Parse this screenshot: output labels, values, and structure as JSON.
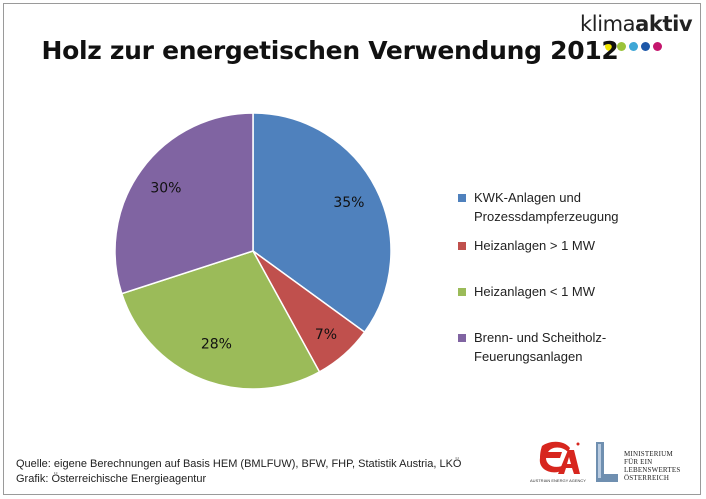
{
  "brand": {
    "name_light": "klima",
    "name_bold": "aktiv",
    "dot_colors": [
      "#f2e600",
      "#9bc33a",
      "#3fa7d6",
      "#1d57a8",
      "#c4166d"
    ]
  },
  "chart_data": {
    "type": "pie",
    "title": "Holz zur energetischen Verwendung 2012",
    "slices": [
      {
        "label": "KWK-Anlagen und\nProzessdampferzeugung",
        "value": 35,
        "display": "35%",
        "color": "#4f81bd"
      },
      {
        "label": "Heizanlagen > 1 MW",
        "value": 7,
        "display": "7%",
        "color": "#c0504d"
      },
      {
        "label": "Heizanlagen < 1 MW",
        "value": 28,
        "display": "28%",
        "color": "#9bbb59"
      },
      {
        "label": "Brenn- und Scheitholz-\nFeuerungsanlagen",
        "value": 30,
        "display": "30%",
        "color": "#8064a2"
      }
    ],
    "legend_position": "right"
  },
  "footer": {
    "source_line": "Quelle: eigene Berechnungen auf Basis HEM (BMLFUW), BFW, FHP, Statistik Austria, LKÖ",
    "graphic_line": "Grafik: Österreichische  Energieagentur",
    "agency_caption": "AUSTRIAN ENERGY AGENCY",
    "ministry_text": "MINISTERIUM\nFÜR EIN\nLEBENSWERTES\nÖSTERREICH"
  }
}
